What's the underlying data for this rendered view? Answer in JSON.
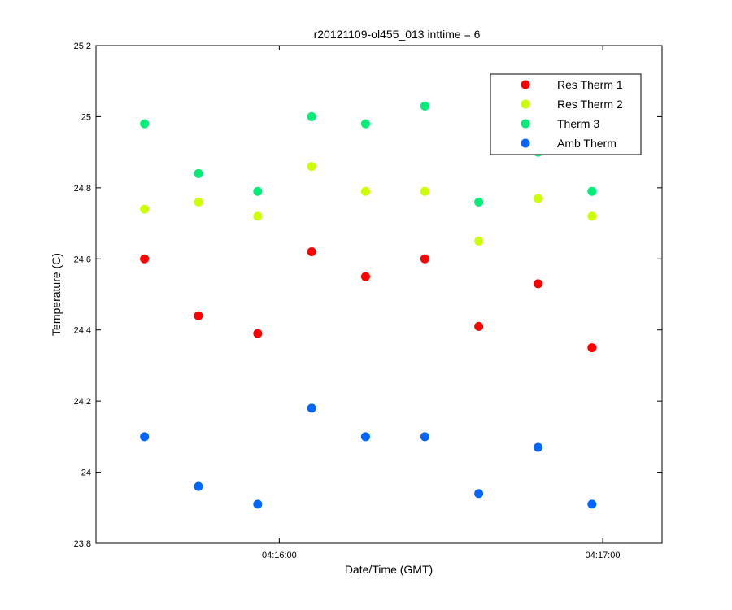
{
  "chart_data": {
    "type": "scatter",
    "title": "r20121109-ol455_013 inttime = 6",
    "xlabel": "Date/Time (GMT)",
    "ylabel": "Temperature (C)",
    "ylim": [
      23.8,
      25.2
    ],
    "xlim": [
      "04:15:26",
      "04:17:11"
    ],
    "y_ticks": [
      "23.8",
      "24",
      "24.2",
      "24.4",
      "24.6",
      "24.8",
      "25",
      "25.2"
    ],
    "x_ticks": [
      {
        "time": "04:16:00",
        "label": "04:16:00"
      },
      {
        "time": "04:17:00",
        "label": "04:17:00"
      }
    ],
    "legend_position": "top-right",
    "x": [
      "04:15:35",
      "04:15:45",
      "04:15:56",
      "04:16:06",
      "04:16:16",
      "04:16:27",
      "04:16:37",
      "04:16:48",
      "04:16:58"
    ],
    "series": [
      {
        "name": "Res Therm 1",
        "color": "#ff0000",
        "values": [
          24.6,
          24.44,
          24.39,
          24.62,
          24.55,
          24.6,
          24.41,
          24.53,
          24.35
        ]
      },
      {
        "name": "Res Therm 2",
        "color": "#ccff00",
        "values": [
          24.74,
          24.76,
          24.72,
          24.86,
          24.79,
          24.79,
          24.65,
          24.77,
          24.72
        ]
      },
      {
        "name": "Therm 3",
        "color": "#00ee77",
        "values": [
          24.98,
          24.84,
          24.79,
          25.0,
          24.98,
          25.03,
          24.76,
          24.9,
          24.79
        ]
      },
      {
        "name": "Amb Therm",
        "color": "#0066ff",
        "values": [
          24.1,
          23.96,
          23.91,
          24.18,
          24.1,
          24.1,
          23.94,
          24.07,
          23.91
        ]
      }
    ]
  }
}
